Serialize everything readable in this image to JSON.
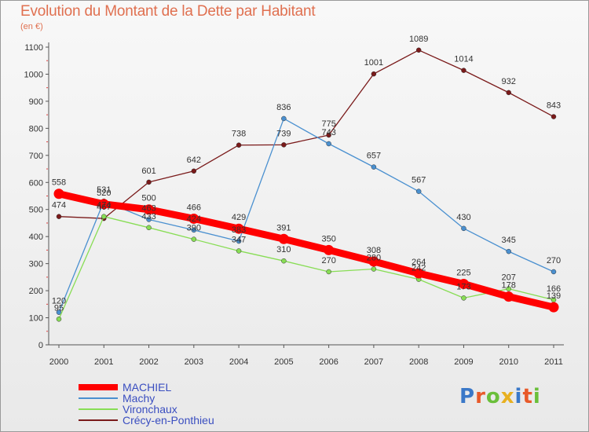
{
  "header": {
    "title": "Evolution du Montant de la Dette par Habitant",
    "unit": "(en €)"
  },
  "chart_data": {
    "type": "line",
    "title": "Evolution du Montant de la Dette par Habitant",
    "subtitle": "(en €)",
    "xlabel": "",
    "ylabel": "",
    "x": [
      "2000",
      "2001",
      "2002",
      "2003",
      "2004",
      "2005",
      "2006",
      "2007",
      "2008",
      "2009",
      "2010",
      "2011"
    ],
    "ylim": [
      0,
      1100
    ],
    "yticks": [
      0,
      100,
      200,
      300,
      400,
      500,
      600,
      700,
      800,
      900,
      1000,
      1100
    ],
    "grid": false,
    "legend_position": "bottom-left",
    "series": [
      {
        "name": "MACHIEL",
        "color": "#ff0000",
        "values": [
          558,
          520,
          500,
          466,
          429,
          391,
          350,
          308,
          264,
          225,
          178,
          139
        ],
        "labels": [
          "558",
          "520",
          "500",
          "466",
          "429",
          "391",
          "350",
          "308",
          "264",
          "225",
          "178",
          "139"
        ]
      },
      {
        "name": "Machy",
        "color": "#4a90d0",
        "values": [
          120,
          531,
          463,
          424,
          383,
          836,
          743,
          657,
          567,
          430,
          345,
          270
        ],
        "labels": [
          "120",
          "531",
          "463",
          "424",
          "383",
          "836",
          "743",
          "657",
          "567",
          "430",
          "345",
          "270"
        ]
      },
      {
        "name": "Vironchaux",
        "color": "#88dd55",
        "values": [
          95,
          474,
          433,
          390,
          347,
          310,
          270,
          280,
          242,
          173,
          207,
          166
        ],
        "labels": [
          "95",
          "474",
          "433",
          "390",
          "347",
          "310",
          "270",
          "280",
          "242",
          "173",
          "207",
          "166"
        ]
      },
      {
        "name": "Crécy-en-Ponthieu",
        "color": "#7a1a1a",
        "values": [
          474,
          467,
          601,
          642,
          738,
          739,
          775,
          1001,
          1089,
          1014,
          932,
          843
        ],
        "labels": [
          "474",
          "467",
          "601",
          "642",
          "738",
          "739",
          "775",
          "1001",
          "1089",
          "1014",
          "932",
          "843"
        ]
      }
    ]
  },
  "legend": {
    "items": [
      {
        "label": "MACHIEL",
        "color": "#ff0000"
      },
      {
        "label": "Machy",
        "color": "#4a90d0"
      },
      {
        "label": "Vironchaux",
        "color": "#88dd55"
      },
      {
        "label": "Crécy-en-Ponthieu",
        "color": "#7a1a1a"
      }
    ]
  },
  "logo": {
    "text": "Proxiti",
    "colors": [
      "#3a78c8",
      "#e85a2a",
      "#6abf3a",
      "#e8b020",
      "#3a78c8",
      "#e85a2a",
      "#6abf3a"
    ]
  }
}
